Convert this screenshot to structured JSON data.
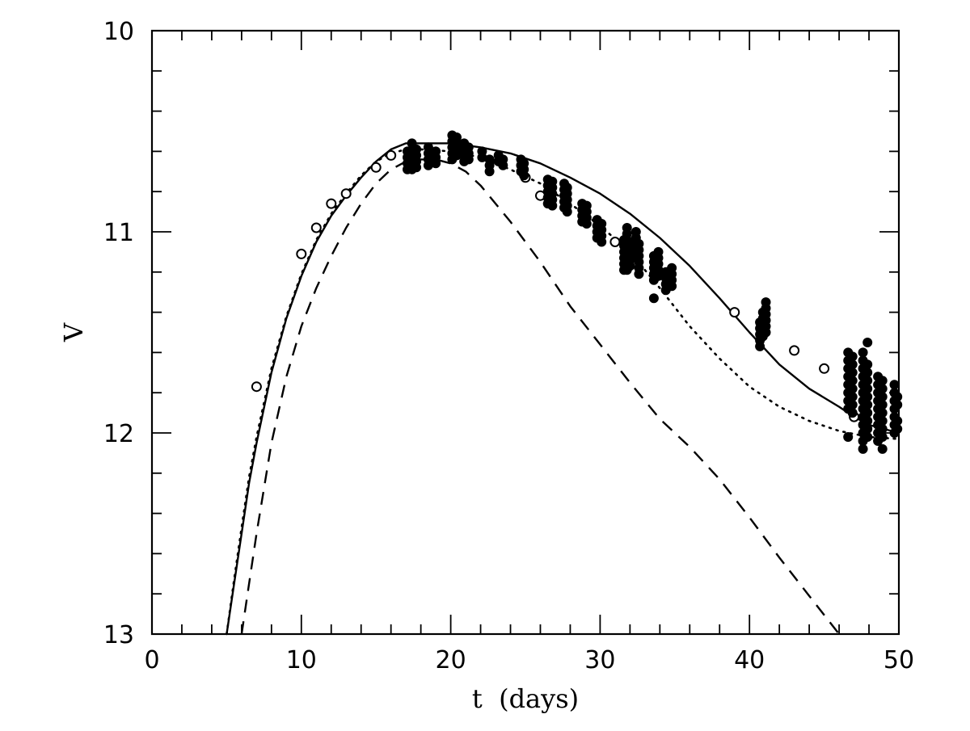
{
  "chart_data": {
    "type": "scatter",
    "title": "",
    "xlabel": "t  (days)",
    "ylabel": "V",
    "xlim": [
      0,
      50
    ],
    "ylim": [
      13,
      10
    ],
    "y_inverted": true,
    "grid": false,
    "x_major_ticks": [
      0,
      10,
      20,
      30,
      40,
      50
    ],
    "x_tick_labels": [
      "0",
      "10",
      "20",
      "30",
      "40",
      "50"
    ],
    "x_minor_step": 2,
    "y_major_ticks": [
      10,
      11,
      12,
      13
    ],
    "y_tick_labels": [
      "10",
      "11",
      "12",
      "13"
    ],
    "y_minor_step": 0.2,
    "series": [
      {
        "name": "model-solid",
        "kind": "line",
        "style": "solid",
        "x": [
          5.0,
          5.5,
          6.0,
          6.5,
          7.0,
          8.0,
          9.0,
          10.0,
          11.0,
          12.0,
          13.0,
          14.0,
          15.0,
          16.0,
          17.0,
          18.0,
          19.0,
          20.0,
          21.0,
          22.0,
          24.0,
          26.0,
          28.0,
          30.0,
          32.0,
          34.0,
          36.0,
          38.0,
          40.0,
          42.0,
          44.0,
          46.0,
          47.0,
          48.0,
          50.0
        ],
        "y": [
          13.0,
          12.75,
          12.5,
          12.25,
          12.05,
          11.7,
          11.43,
          11.22,
          11.05,
          10.92,
          10.82,
          10.73,
          10.65,
          10.59,
          10.56,
          10.56,
          10.56,
          10.56,
          10.57,
          10.58,
          10.61,
          10.66,
          10.73,
          10.81,
          10.91,
          11.03,
          11.17,
          11.33,
          11.5,
          11.66,
          11.78,
          11.87,
          11.92,
          11.96,
          12.0
        ]
      },
      {
        "name": "model-dotted",
        "kind": "line",
        "style": "dotted",
        "x": [
          5.0,
          5.5,
          6.0,
          6.5,
          7.0,
          8.0,
          9.0,
          10.0,
          11.0,
          12.0,
          13.0,
          14.0,
          15.0,
          16.0,
          17.0,
          18.0,
          20.0,
          22.0,
          24.0,
          26.0,
          28.0,
          30.0,
          32.0,
          34.0,
          36.0,
          38.0,
          40.0,
          42.0,
          44.0,
          46.0,
          48.0,
          50.0
        ],
        "y": [
          13.0,
          12.73,
          12.47,
          12.22,
          12.02,
          11.68,
          11.42,
          11.21,
          11.04,
          10.91,
          10.81,
          10.72,
          10.65,
          10.61,
          10.59,
          10.59,
          10.6,
          10.63,
          10.69,
          10.76,
          10.86,
          10.97,
          11.1,
          11.28,
          11.47,
          11.63,
          11.77,
          11.87,
          11.94,
          11.99,
          12.02,
          12.03
        ]
      },
      {
        "name": "model-dashed",
        "kind": "line",
        "style": "dashed",
        "x": [
          6.0,
          6.5,
          7.0,
          8.0,
          9.0,
          10.0,
          11.0,
          12.0,
          13.0,
          14.0,
          15.0,
          16.0,
          17.0,
          18.0,
          19.0,
          20.0,
          21.0,
          22.0,
          24.0,
          26.0,
          28.0,
          30.0,
          32.0,
          34.0,
          36.0,
          38.0,
          40.0,
          42.0,
          44.0,
          46.0
        ],
        "y": [
          13.0,
          12.75,
          12.5,
          12.05,
          11.72,
          11.47,
          11.28,
          11.12,
          10.98,
          10.86,
          10.76,
          10.69,
          10.65,
          10.64,
          10.64,
          10.66,
          10.7,
          10.77,
          10.95,
          11.15,
          11.37,
          11.56,
          11.75,
          11.93,
          12.07,
          12.23,
          12.42,
          12.62,
          12.81,
          13.0
        ]
      },
      {
        "name": "open-circles",
        "kind": "scatter",
        "marker": "open-circle",
        "x": [
          7.0,
          10.0,
          11.0,
          12.0,
          13.0,
          15.0,
          16.0,
          25.0,
          26.0,
          31.0,
          39.0,
          43.0,
          45.0,
          47.0
        ],
        "y": [
          11.77,
          11.11,
          10.98,
          10.86,
          10.81,
          10.68,
          10.62,
          10.73,
          10.82,
          11.05,
          11.4,
          11.59,
          11.68,
          11.92
        ]
      },
      {
        "name": "filled-points",
        "kind": "scatter",
        "marker": "filled-circle",
        "x": [
          17.1,
          17.1,
          17.1,
          17.1,
          17.4,
          17.4,
          17.4,
          17.4,
          17.4,
          17.7,
          17.7,
          17.7,
          17.7,
          18.5,
          18.5,
          18.5,
          18.5,
          19.0,
          19.0,
          19.0,
          20.1,
          20.1,
          20.1,
          20.1,
          20.1,
          20.4,
          20.4,
          20.4,
          20.4,
          20.9,
          20.9,
          20.9,
          20.9,
          21.2,
          21.2,
          21.2,
          22.1,
          22.1,
          22.6,
          22.6,
          22.6,
          23.2,
          23.2,
          23.5,
          23.5,
          24.7,
          24.7,
          24.7,
          24.9,
          24.9,
          24.9,
          26.5,
          26.5,
          26.5,
          26.5,
          26.5,
          26.8,
          26.8,
          26.8,
          26.8,
          26.8,
          27.6,
          27.6,
          27.6,
          27.6,
          27.6,
          27.8,
          27.8,
          27.8,
          27.8,
          27.8,
          28.8,
          28.8,
          28.8,
          28.8,
          29.1,
          29.1,
          29.1,
          29.1,
          29.8,
          29.8,
          29.8,
          29.8,
          30.1,
          30.1,
          30.1,
          30.1,
          31.6,
          31.6,
          31.6,
          31.6,
          31.6,
          31.6,
          31.8,
          31.8,
          31.8,
          31.8,
          31.8,
          31.8,
          31.8,
          32.0,
          32.0,
          32.0,
          32.0,
          32.0,
          32.4,
          32.4,
          32.4,
          32.4,
          32.4,
          32.6,
          32.6,
          32.6,
          32.6,
          32.6,
          32.6,
          33.6,
          33.6,
          33.6,
          33.6,
          33.6,
          33.6,
          33.9,
          33.9,
          33.9,
          33.9,
          33.9,
          34.4,
          34.4,
          34.4,
          34.4,
          34.8,
          34.8,
          34.8,
          34.8,
          40.7,
          40.7,
          40.7,
          40.7,
          40.7,
          40.9,
          40.9,
          40.9,
          40.9,
          40.9,
          41.1,
          41.1,
          41.1,
          41.1,
          41.1,
          41.1,
          46.6,
          46.6,
          46.6,
          46.6,
          46.6,
          46.6,
          46.6,
          46.6,
          46.6,
          46.9,
          46.9,
          46.9,
          46.9,
          46.9,
          46.9,
          46.9,
          46.9,
          47.6,
          47.6,
          47.6,
          47.6,
          47.6,
          47.6,
          47.6,
          47.6,
          47.6,
          47.6,
          47.6,
          47.6,
          47.6,
          47.9,
          47.9,
          47.9,
          47.9,
          47.9,
          47.9,
          47.9,
          47.9,
          47.9,
          47.9,
          47.9,
          48.6,
          48.6,
          48.6,
          48.6,
          48.6,
          48.6,
          48.6,
          48.6,
          48.6,
          48.9,
          48.9,
          48.9,
          48.9,
          48.9,
          48.9,
          48.9,
          48.9,
          48.9,
          49.7,
          49.7,
          49.7,
          49.7,
          49.7,
          49.7,
          49.7,
          49.9,
          49.9,
          49.9,
          49.9
        ],
        "y": [
          10.6,
          10.63,
          10.66,
          10.69,
          10.56,
          10.6,
          10.63,
          10.66,
          10.69,
          10.59,
          10.62,
          10.65,
          10.68,
          10.58,
          10.61,
          10.64,
          10.67,
          10.6,
          10.63,
          10.66,
          10.52,
          10.55,
          10.58,
          10.61,
          10.64,
          10.53,
          10.56,
          10.59,
          10.62,
          10.56,
          10.59,
          10.62,
          10.65,
          10.58,
          10.61,
          10.64,
          10.6,
          10.63,
          10.64,
          10.67,
          10.7,
          10.62,
          10.65,
          10.64,
          10.67,
          10.64,
          10.67,
          10.7,
          10.66,
          10.69,
          10.72,
          10.74,
          10.77,
          10.8,
          10.83,
          10.86,
          10.75,
          10.78,
          10.81,
          10.84,
          10.87,
          10.76,
          10.79,
          10.82,
          10.85,
          10.88,
          10.78,
          10.81,
          10.84,
          10.87,
          10.9,
          10.86,
          10.89,
          10.92,
          10.95,
          10.87,
          10.9,
          10.93,
          10.96,
          10.94,
          10.97,
          11.0,
          11.03,
          10.96,
          10.99,
          11.02,
          11.05,
          11.04,
          11.07,
          11.1,
          11.13,
          11.16,
          11.19,
          10.98,
          11.01,
          11.04,
          11.07,
          11.1,
          11.13,
          11.19,
          11.05,
          11.08,
          11.11,
          11.14,
          11.17,
          11.0,
          11.03,
          11.06,
          11.09,
          11.12,
          11.06,
          11.09,
          11.12,
          11.15,
          11.18,
          11.21,
          11.12,
          11.15,
          11.18,
          11.21,
          11.24,
          11.33,
          11.1,
          11.13,
          11.16,
          11.19,
          11.22,
          11.2,
          11.23,
          11.26,
          11.29,
          11.18,
          11.21,
          11.24,
          11.27,
          11.45,
          11.48,
          11.51,
          11.54,
          11.57,
          11.4,
          11.43,
          11.46,
          11.49,
          11.52,
          11.35,
          11.38,
          11.41,
          11.44,
          11.47,
          11.5,
          11.6,
          11.64,
          11.68,
          11.72,
          11.76,
          11.8,
          11.84,
          11.88,
          12.02,
          11.62,
          11.66,
          11.7,
          11.74,
          11.78,
          11.82,
          11.86,
          11.9,
          11.6,
          11.64,
          11.68,
          11.72,
          11.76,
          11.8,
          11.84,
          11.88,
          11.92,
          11.96,
          12.0,
          12.04,
          12.08,
          11.55,
          11.66,
          11.7,
          11.74,
          11.78,
          11.82,
          11.86,
          11.9,
          11.94,
          11.98,
          12.02,
          11.72,
          11.76,
          11.8,
          11.84,
          11.88,
          11.92,
          11.96,
          12.0,
          12.04,
          11.74,
          11.78,
          11.82,
          11.86,
          11.9,
          11.94,
          11.98,
          12.02,
          12.08,
          11.76,
          11.8,
          11.84,
          11.88,
          11.92,
          11.96,
          12.0,
          11.82,
          11.86,
          11.94,
          11.98
        ]
      }
    ]
  }
}
